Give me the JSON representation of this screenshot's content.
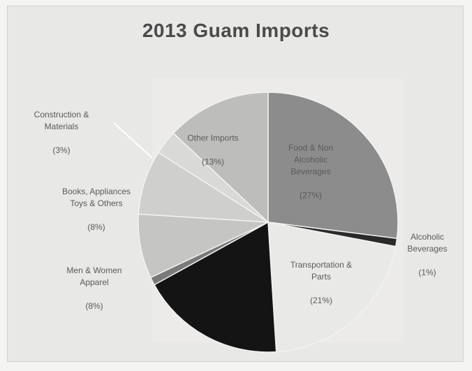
{
  "chart_data": {
    "type": "pie",
    "title": "2013 Guam Imports",
    "slices": [
      {
        "label": "Food & Non Alcoholic Beverages",
        "value": 27,
        "pct_label": "(27%)",
        "color": "#8c8c8c"
      },
      {
        "label": "Alcoholic Beverages",
        "value": 1,
        "pct_label": "(1%)",
        "color": "#2a2a2a"
      },
      {
        "label": "Transportation & Parts",
        "value": 21,
        "pct_label": "(21%)",
        "color": "#e9e9e7"
      },
      {
        "label": "",
        "value": 18,
        "pct_label": "",
        "color": "#141414"
      },
      {
        "label": "",
        "value": 1,
        "pct_label": "",
        "color": "#7a7a7a"
      },
      {
        "label": "Men & Women Apparel",
        "value": 8,
        "pct_label": "(8%)",
        "color": "#c5c5c3"
      },
      {
        "label": "Books, Appliances Toys & Others",
        "value": 8,
        "pct_label": "(8%)",
        "color": "#cfcfcd"
      },
      {
        "label": "Construction & Materials",
        "value": 3,
        "pct_label": "(3%)",
        "color": "#d9d9d7"
      },
      {
        "label": "Other Imports",
        "value": 13,
        "pct_label": "(13%)",
        "color": "#bdbdbb"
      }
    ]
  },
  "labels": {
    "food": {
      "name": "Food & Non\nAlcoholic\nBeverages",
      "pct": "(27%)"
    },
    "alcoholic": {
      "name": "Alcoholic\nBeverages",
      "pct": "(1%)"
    },
    "transport": {
      "name": "Transportation &\nParts",
      "pct": "(21%)"
    },
    "apparel": {
      "name": "Men & Women\nApparel",
      "pct": "(8%)"
    },
    "books": {
      "name": "Books, Appliances\nToys & Others",
      "pct": "(8%)"
    },
    "construction": {
      "name": "Construction &\nMaterials",
      "pct": "(3%)"
    },
    "other": {
      "name": "Other Imports",
      "pct": "(13%)"
    }
  }
}
